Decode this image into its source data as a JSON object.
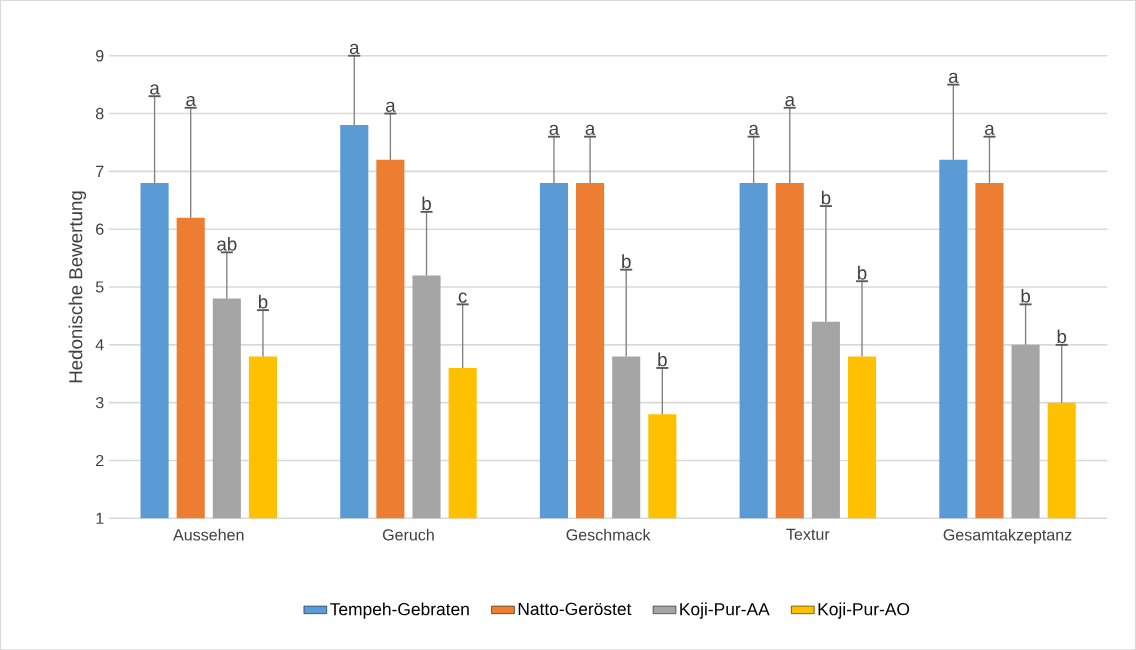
{
  "chart_data": {
    "type": "bar",
    "ylabel": "Hedonische Bewertung",
    "categories": [
      "Aussehen",
      "Geruch",
      "Geschmack",
      "Textur",
      "Gesamtakzeptanz"
    ],
    "series": [
      {
        "name": "Tempeh-Gebraten",
        "color": "#5b9bd5",
        "values": [
          6.8,
          7.8,
          6.8,
          6.8,
          7.2
        ],
        "errors": [
          [
            6.8,
            8.3
          ],
          [
            7.8,
            9.0
          ],
          [
            6.8,
            7.6
          ],
          [
            6.8,
            7.6
          ],
          [
            7.2,
            8.5
          ]
        ]
      },
      {
        "name": "Natto-Geröstet",
        "color": "#ed7d31",
        "values": [
          6.2,
          7.2,
          6.8,
          6.8,
          6.8
        ],
        "errors": [
          [
            6.2,
            8.1
          ],
          [
            7.2,
            8.0
          ],
          [
            6.8,
            7.6
          ],
          [
            6.8,
            8.1
          ],
          [
            6.8,
            7.6
          ]
        ]
      },
      {
        "name": "Koji-Pur-AA",
        "color": "#a5a5a5",
        "values": [
          4.8,
          5.2,
          3.8,
          4.4,
          4.0
        ],
        "errors": [
          [
            4.8,
            5.6
          ],
          [
            5.2,
            6.3
          ],
          [
            3.8,
            5.3
          ],
          [
            4.4,
            6.4
          ],
          [
            4.0,
            4.7
          ]
        ]
      },
      {
        "name": "Koji-Pur-AO",
        "color": "#ffc000",
        "values": [
          3.8,
          3.6,
          2.8,
          3.8,
          3.0
        ],
        "errors": [
          [
            3.8,
            4.6
          ],
          [
            3.6,
            4.7
          ],
          [
            2.8,
            3.6
          ],
          [
            3.8,
            5.1
          ],
          [
            3.0,
            4.0
          ]
        ]
      }
    ],
    "annotations": [
      "a",
      "a",
      "ab",
      "b",
      "a",
      "a",
      "b",
      "c",
      "a",
      "a",
      "b",
      "b",
      "a",
      "a",
      "b",
      "b",
      "a",
      "a",
      "b",
      "b"
    ],
    "ylim": [
      1,
      9
    ],
    "yticks": [
      1,
      2,
      3,
      4,
      5,
      6,
      7,
      8,
      9
    ],
    "grid": "y",
    "legend": "bottom"
  }
}
